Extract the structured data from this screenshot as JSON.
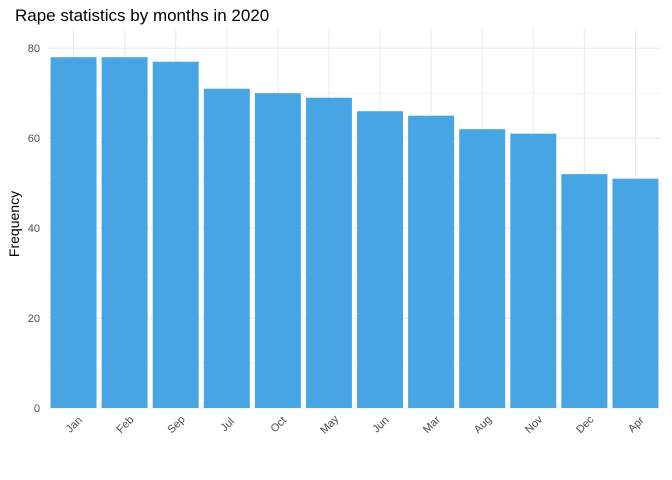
{
  "chart_data": {
    "type": "bar",
    "title": "Rape statistics by months in 2020",
    "xlabel": "",
    "ylabel": "Frequency",
    "categories": [
      "Jan",
      "Feb",
      "Sep",
      "Jul",
      "Oct",
      "May",
      "Jun",
      "Mar",
      "Aug",
      "Nov",
      "Dec",
      "Apr"
    ],
    "values": [
      78,
      78,
      77,
      71,
      70,
      69,
      66,
      65,
      62,
      61,
      52,
      51
    ],
    "ylim": [
      0,
      80
    ],
    "yticks": [
      0,
      20,
      40,
      60,
      80
    ],
    "grid": true,
    "legend": "none",
    "bar_color": "#48A5E3",
    "grid_color": "#EBEBEB"
  }
}
